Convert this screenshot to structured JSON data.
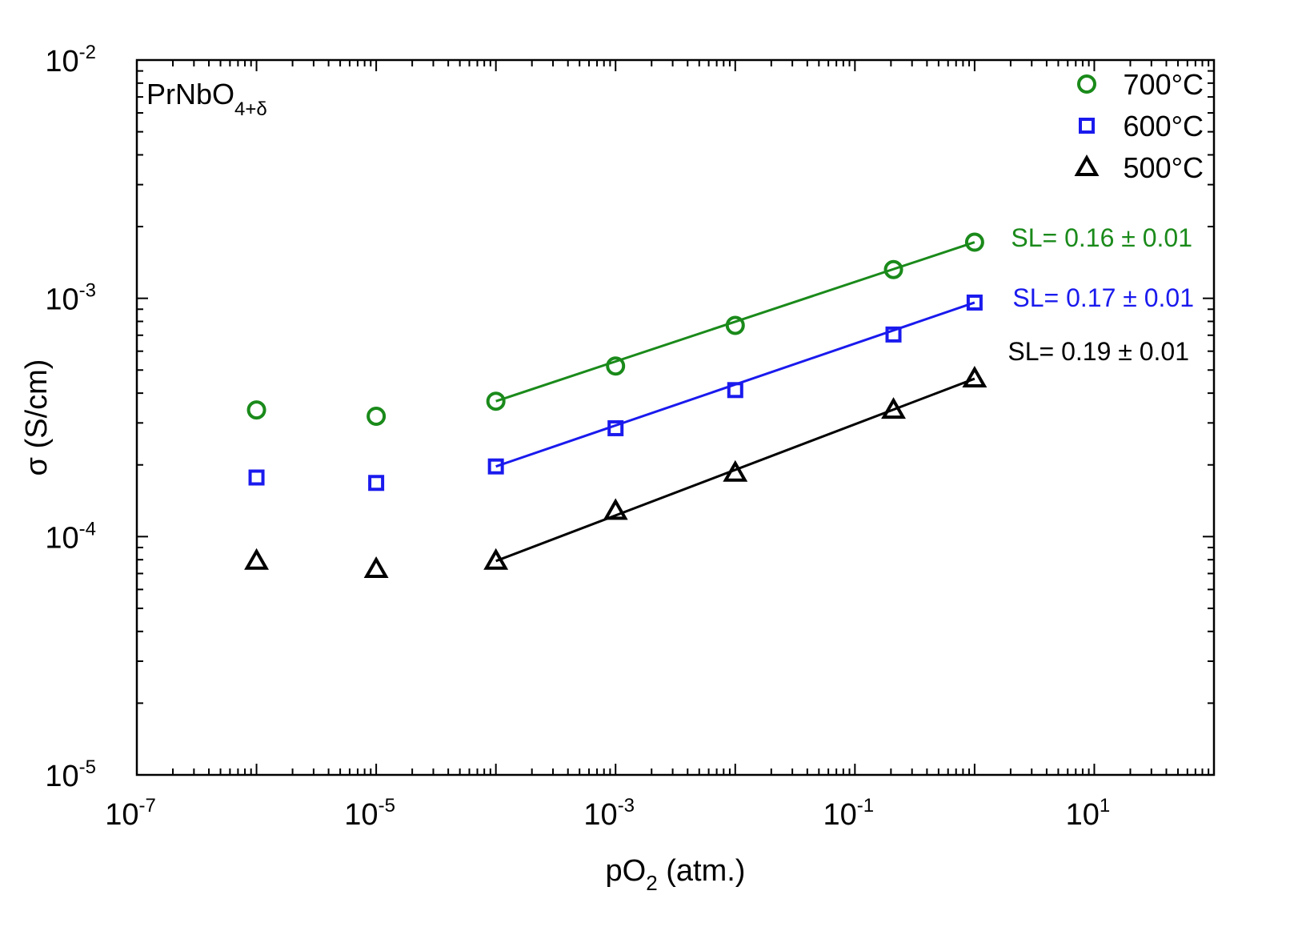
{
  "chart_data": {
    "type": "scatter",
    "sample_label": {
      "base": "PrNbO",
      "subscript": "4+δ"
    },
    "xlabel": {
      "base": "pO",
      "subscript": "2",
      "suffix": " (atm.)"
    },
    "ylabel": "σ (S/cm)",
    "xscale": "log",
    "yscale": "log",
    "xlim": [
      1e-07,
      100
    ],
    "ylim": [
      1e-05,
      0.01
    ],
    "x_ticks": [
      {
        "base": "10",
        "exp": "-7"
      },
      {
        "base": "10",
        "exp": "-5"
      },
      {
        "base": "10",
        "exp": "-3"
      },
      {
        "base": "10",
        "exp": "-1"
      },
      {
        "base": "10",
        "exp": "1"
      }
    ],
    "y_ticks": [
      {
        "base": "10",
        "exp": "-5"
      },
      {
        "base": "10",
        "exp": "-4"
      },
      {
        "base": "10",
        "exp": "-3"
      },
      {
        "base": "10",
        "exp": "-2"
      }
    ],
    "series": [
      {
        "name": "700°C",
        "marker": "circle",
        "color": "#1a8a1a",
        "x": [
          1e-06,
          1e-05,
          0.0001,
          0.001,
          0.01,
          0.21,
          1
        ],
        "y": [
          0.00034,
          0.00032,
          0.00037,
          0.00052,
          0.00077,
          0.00132,
          0.00172
        ],
        "fit": {
          "x": [
            0.0001,
            1
          ],
          "y": [
            0.00037,
            0.00172
          ]
        },
        "annotation": "SL= 0.16 ± 0.01"
      },
      {
        "name": "600°C",
        "marker": "square",
        "color": "#1a1aee",
        "x": [
          1e-06,
          1e-05,
          0.0001,
          0.001,
          0.01,
          0.21,
          1
        ],
        "y": [
          0.000177,
          0.000168,
          0.000197,
          0.000285,
          0.000412,
          0.000705,
          0.00096
        ],
        "fit": {
          "x": [
            0.0001,
            1
          ],
          "y": [
            0.000197,
            0.00096
          ]
        },
        "annotation": "SL= 0.17 ± 0.01"
      },
      {
        "name": "500°C",
        "marker": "triangle",
        "color": "#000000",
        "x": [
          1e-06,
          1e-05,
          0.0001,
          0.001,
          0.01,
          0.21,
          1
        ],
        "y": [
          7.9e-05,
          7.3e-05,
          7.9e-05,
          0.000128,
          0.000185,
          0.00034,
          0.00046
        ],
        "fit": {
          "x": [
            0.0001,
            1
          ],
          "y": [
            7.9e-05,
            0.00046
          ]
        },
        "annotation": "SL= 0.19 ± 0.01"
      }
    ],
    "legend": {
      "position": "top-right",
      "entries": [
        "700°C",
        "600°C",
        "500°C"
      ]
    }
  }
}
